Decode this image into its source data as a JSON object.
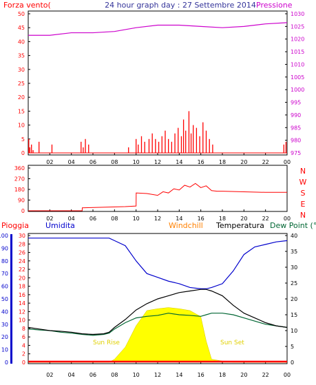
{
  "title": "24 hour graph day : 27 Settembre 2014",
  "colors": {
    "wind": "#ff0000",
    "pressure": "#cc00cc",
    "rain": "#ff0000",
    "humidity": "#0000cc",
    "windchill": "#ff8000",
    "temperature": "#000000",
    "dewpoint": "#006633",
    "sun": "#ffff00",
    "sunlabel": "#e0d000",
    "axis": "#000000"
  },
  "x_ticks": [
    "02",
    "04",
    "06",
    "08",
    "10",
    "12",
    "14",
    "16",
    "18",
    "20",
    "22",
    "00"
  ],
  "chart_data": [
    {
      "type": "bar",
      "panel": "wind_pressure",
      "left_label": "Forza vento(",
      "right_label": "Pressione",
      "y_left_ticks": [
        "50",
        "45",
        "40",
        "35",
        "30",
        "25",
        "20",
        "15",
        "10",
        "5",
        "0"
      ],
      "y_right_ticks": [
        "1030",
        "1025",
        "1020",
        "1015",
        "1010",
        "1005",
        "1000",
        "995",
        "990",
        "985",
        "980",
        "975"
      ],
      "ylim_left": [
        0,
        50
      ],
      "ylim_right": [
        975,
        1030
      ],
      "pressure_series": {
        "name": "Pressione",
        "x_hours": [
          0,
          2,
          4,
          6,
          8,
          10,
          12,
          14,
          16,
          18,
          20,
          22,
          24
        ],
        "values": [
          1021.5,
          1021.5,
          1022.5,
          1022.5,
          1023,
          1024.5,
          1025.5,
          1025.5,
          1025,
          1024.5,
          1025,
          1026,
          1026.5
        ]
      },
      "wind_gusts": {
        "name": "Forza vento",
        "x_hours": [
          0.05,
          0.15,
          0.3,
          0.45,
          1.0,
          2.2,
          4.9,
          5.1,
          5.3,
          5.6,
          9.3,
          10.0,
          10.2,
          10.5,
          10.8,
          11.2,
          11.5,
          11.8,
          12.1,
          12.4,
          12.7,
          13.0,
          13.3,
          13.6,
          13.9,
          14.2,
          14.4,
          14.6,
          14.9,
          15.1,
          15.3,
          15.6,
          15.9,
          16.2,
          16.5,
          16.8,
          17.1,
          23.7,
          23.9
        ],
        "values": [
          5,
          2,
          3,
          1,
          4,
          3,
          4,
          2,
          5,
          3,
          2,
          5,
          3,
          6,
          4,
          5,
          7,
          5,
          4,
          6,
          8,
          5,
          4,
          7,
          9,
          6,
          12,
          8,
          15,
          7,
          10,
          9,
          6,
          11,
          8,
          5,
          3,
          3,
          4
        ]
      }
    },
    {
      "type": "line",
      "panel": "wind_direction",
      "y_ticks": [
        "360",
        "270",
        "180",
        "90",
        "0"
      ],
      "ylim": [
        0,
        360
      ],
      "compass_labels": [
        "N",
        "W",
        "S",
        "E",
        "N"
      ],
      "series": {
        "x_hours": [
          0,
          2,
          4,
          5,
          5.01,
          7,
          9,
          10,
          10.01,
          11,
          12,
          12.5,
          13,
          13.5,
          14,
          14.5,
          15,
          15.5,
          16,
          16.5,
          17,
          17.5,
          18,
          20,
          22,
          24
        ],
        "values": [
          0,
          0,
          0,
          0,
          25,
          30,
          35,
          40,
          150,
          145,
          130,
          160,
          150,
          185,
          175,
          215,
          200,
          230,
          195,
          210,
          170,
          165,
          165,
          160,
          155,
          155
        ]
      }
    },
    {
      "type": "line",
      "panel": "rain_humidity_temperature",
      "labels": {
        "rain": "Pioggia",
        "humidity": "Umidita",
        "windchill": "Windchill",
        "temperature": "Temperatura",
        "dewpoint": "Dew Point (°C"
      },
      "humidity_ticks": [
        "100",
        "90",
        "80",
        "70",
        "60",
        "50",
        "40",
        "30",
        "20",
        "10",
        "0"
      ],
      "rain_ticks": [
        "30",
        "28",
        "26",
        "24",
        "22",
        "20",
        "18",
        "16",
        "14",
        "12",
        "10",
        "8",
        "6",
        "4",
        "2",
        "0"
      ],
      "temp_ticks": [
        "40",
        "35",
        "30",
        "25",
        "20",
        "15",
        "10",
        "5",
        "0"
      ],
      "ylim_humidity": [
        0,
        100
      ],
      "ylim_temperature": [
        0,
        40
      ],
      "x_hours": [
        0,
        1,
        2,
        3,
        4,
        5,
        6,
        7,
        7.5,
        8,
        9,
        10,
        11,
        12,
        13,
        14,
        15,
        16,
        16.5,
        17,
        18,
        19,
        20,
        21,
        22,
        23,
        24
      ],
      "humidity": [
        98,
        98,
        98,
        98,
        98,
        98,
        98,
        98,
        98,
        96,
        92,
        80,
        70,
        67,
        64,
        62,
        59,
        58,
        58,
        59,
        62,
        72,
        85,
        91,
        93,
        95,
        96
      ],
      "temperature": [
        11,
        10.5,
        10,
        9.8,
        9.5,
        9,
        8.8,
        9,
        9.5,
        11,
        13.5,
        16.5,
        18.5,
        20,
        21,
        22,
        22.5,
        23,
        23,
        22.5,
        21,
        18,
        15.5,
        14,
        12.5,
        11.5,
        11
      ],
      "dewpoint": [
        10.5,
        10.2,
        10,
        9.5,
        9.2,
        8.8,
        8.5,
        8.8,
        9.2,
        10.5,
        12.5,
        14,
        14.5,
        14.8,
        15.5,
        15,
        14.8,
        14.5,
        15,
        15.5,
        15.5,
        15,
        14,
        13,
        12,
        11.5,
        11
      ],
      "sun_radiation_pct": [
        0,
        0,
        0,
        0,
        0,
        0,
        0,
        0,
        0,
        5,
        25,
        60,
        85,
        88,
        90,
        88,
        85,
        75,
        35,
        5,
        2,
        0,
        0,
        0,
        0,
        0,
        0
      ],
      "annotations": [
        "Sun Rise",
        "Sun Set"
      ]
    }
  ]
}
